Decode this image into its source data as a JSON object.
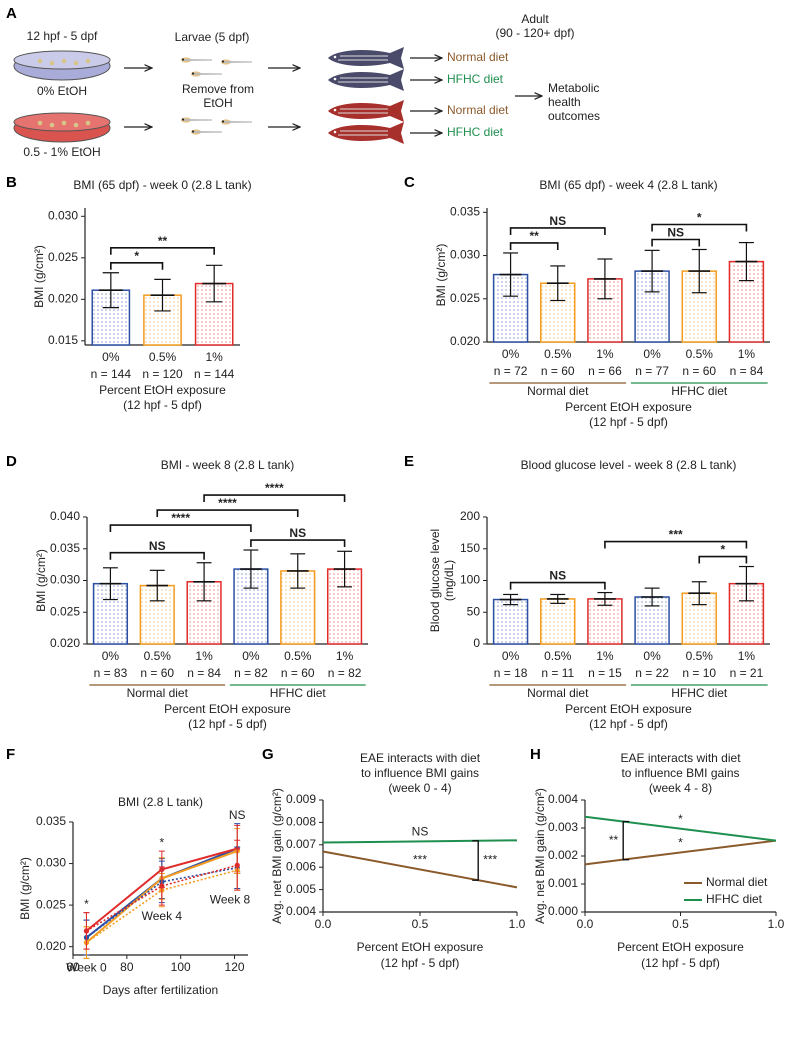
{
  "diagram": {
    "panel": "A",
    "plate_label": "12 hpf - 5 dpf",
    "dishes": [
      "0% EtOH",
      "0.5 - 1% EtOH"
    ],
    "larvae_label": "Larvae (5 dpf)",
    "remove_label": [
      "Remove from",
      "EtOH"
    ],
    "adult_label": [
      "Adult",
      "(90 - 120+ dpf)"
    ],
    "diets": [
      "Normal diet",
      "HFHC diet",
      "Normal diet",
      "HFHC diet"
    ],
    "outcome": [
      "Metabolic",
      "health",
      "outcomes"
    ]
  },
  "chart_data": [
    {
      "panel": "B",
      "type": "bar",
      "title": "BMI (65 dpf) - week 0 (2.8 L tank)",
      "ylabel": "BMI (g/cm²)",
      "xlabel": "Percent EtOH exposure",
      "xsublabel": "(12 hpf - 5 dpf)",
      "categories": [
        "0%",
        "0.5%",
        "1%"
      ],
      "n_labels": [
        "n = 144",
        "n = 120",
        "n = 144"
      ],
      "colors": [
        "#2d4fa3",
        "#f39c1f",
        "#e02b2b"
      ],
      "values": [
        0.0211,
        0.0205,
        0.0219
      ],
      "errors": [
        0.0021,
        0.0019,
        0.0022
      ],
      "ylim": [
        0.0145,
        0.031
      ],
      "yticks": [
        0.015,
        {
          "value": 0.02,
          "label": "0.020"
        },
        0.025,
        {
          "value": 0.03,
          "label": "0.030"
        }
      ],
      "annotations": [
        {
          "from": 0,
          "to": 1,
          "label": "*"
        },
        {
          "from": 0,
          "to": 2,
          "label": "**"
        }
      ]
    },
    {
      "panel": "C",
      "type": "bar",
      "title": "BMI (65 dpf) - week 4 (2.8 L tank)",
      "ylabel": "BMI (g/cm²)",
      "xlabel": "Percent EtOH exposure",
      "xsublabel": "(12 hpf - 5 dpf)",
      "categories": [
        "0%",
        "0.5%",
        "1%",
        "0%",
        "0.5%",
        "1%"
      ],
      "n_labels": [
        "n = 72",
        "n = 60",
        "n = 66",
        "n = 77",
        "n = 60",
        "n = 84"
      ],
      "colors": [
        "#2d4fa3",
        "#f39c1f",
        "#e02b2b",
        "#2d4fa3",
        "#f39c1f",
        "#e02b2b"
      ],
      "values": [
        0.0278,
        0.0268,
        0.0273,
        0.0282,
        0.0282,
        0.0293
      ],
      "errors": [
        0.0025,
        0.002,
        0.0023,
        0.0024,
        0.0025,
        0.0022
      ],
      "ylim": [
        0.02,
        0.0355
      ],
      "yticks": [
        {
          "value": 0.02,
          "label": "0.020"
        },
        0.025,
        {
          "value": 0.03,
          "label": "0.030"
        },
        0.035
      ],
      "groups": [
        {
          "label": "Normal diet",
          "color": "#8b5a2b",
          "from": 0,
          "to": 2
        },
        {
          "label": "HFHC diet",
          "color": "#1f8f4e",
          "from": 3,
          "to": 5
        }
      ],
      "annotations": [
        {
          "from": 0,
          "to": 1,
          "label": "**"
        },
        {
          "from": 0,
          "to": 2,
          "label": "NS"
        },
        {
          "from": 3,
          "to": 4,
          "label": "NS"
        },
        {
          "from": 3,
          "to": 5,
          "label": "*"
        }
      ]
    },
    {
      "panel": "D",
      "type": "bar",
      "title": "BMI  - week 8 (2.8 L tank)",
      "ylabel": "BMI (g/cm²)",
      "xlabel": "Percent EtOH exposure",
      "xsublabel": "(12 hpf - 5 dpf)",
      "categories": [
        "0%",
        "0.5%",
        "1%",
        "0%",
        "0.5%",
        "1%"
      ],
      "n_labels": [
        "n = 83",
        "n = 60",
        "n = 84",
        "n = 82",
        "n = 60",
        "n = 82"
      ],
      "colors": [
        "#2d4fa3",
        "#f39c1f",
        "#e02b2b",
        "#2d4fa3",
        "#f39c1f",
        "#e02b2b"
      ],
      "values": [
        0.0295,
        0.0292,
        0.0298,
        0.0318,
        0.0315,
        0.0318
      ],
      "errors": [
        0.0025,
        0.0024,
        0.003,
        0.003,
        0.0027,
        0.0028
      ],
      "ylim": [
        0.02,
        0.04
      ],
      "yticks": [
        {
          "value": 0.02,
          "label": "0.020"
        },
        0.025,
        {
          "value": 0.03,
          "label": "0.030"
        },
        0.035,
        {
          "value": 0.04,
          "label": "0.040"
        }
      ],
      "groups": [
        {
          "label": "Normal diet",
          "color": "#8b5a2b",
          "from": 0,
          "to": 2
        },
        {
          "label": "HFHC diet",
          "color": "#1f8f4e",
          "from": 3,
          "to": 5
        }
      ],
      "annotations": [
        {
          "from": 0,
          "to": 2,
          "label": "NS"
        },
        {
          "from": 3,
          "to": 5,
          "label": "NS"
        },
        {
          "from": 0,
          "to": 3,
          "label": "****"
        },
        {
          "from": 1,
          "to": 4,
          "label": "****"
        },
        {
          "from": 2,
          "to": 5,
          "label": "****"
        }
      ]
    },
    {
      "panel": "E",
      "type": "bar",
      "title": "Blood glucose level  - week 8 (2.8 L tank)",
      "ylabel": [
        "Blood  glucose level",
        "(mg/dL)"
      ],
      "xlabel": "Percent EtOH exposure",
      "xsublabel": "(12 hpf - 5 dpf)",
      "categories": [
        "0%",
        "0.5%",
        "1%",
        "0%",
        "0.5%",
        "1%"
      ],
      "n_labels": [
        "n = 18",
        "n = 11",
        "n = 15",
        "n = 22",
        "n = 10",
        "n = 21"
      ],
      "colors": [
        "#2d4fa3",
        "#f39c1f",
        "#e02b2b",
        "#2d4fa3",
        "#f39c1f",
        "#e02b2b"
      ],
      "values": [
        70,
        71,
        71,
        74,
        80,
        95
      ],
      "errors": [
        8,
        7,
        10,
        14,
        18,
        27
      ],
      "ylim": [
        0,
        200
      ],
      "yticks": [
        0,
        50,
        100,
        150,
        200
      ],
      "groups": [
        {
          "label": "Normal diet",
          "color": "#8b5a2b",
          "from": 0,
          "to": 2
        },
        {
          "label": "HFHC diet",
          "color": "#1f8f4e",
          "from": 3,
          "to": 5
        }
      ],
      "annotations": [
        {
          "from": 0,
          "to": 2,
          "label": "NS"
        },
        {
          "from": 4,
          "to": 5,
          "label": "*"
        },
        {
          "from": 2,
          "to": 5,
          "label": "***"
        }
      ]
    },
    {
      "panel": "F",
      "type": "line",
      "title": "BMI (2.8 L tank)",
      "ylabel": "BMI (g/cm²)",
      "xlabel": "Days after fertilization",
      "x": [
        65,
        93,
        121
      ],
      "xlim": [
        60,
        125
      ],
      "xticks": [
        60,
        80,
        100,
        120
      ],
      "ylim": [
        0.019,
        0.035
      ],
      "yticks": [
        {
          "value": 0.02,
          "label": "0.020"
        },
        0.025,
        {
          "value": 0.03,
          "label": "0.030"
        },
        0.035
      ],
      "markers": true,
      "series": [
        {
          "color": "#2d4fa3",
          "dash": false,
          "values": [
            0.0211,
            0.0282,
            0.0318
          ],
          "errors": [
            0.0021,
            0.0024,
            0.003
          ]
        },
        {
          "color": "#f39c1f",
          "dash": false,
          "values": [
            0.0205,
            0.0282,
            0.0315
          ],
          "errors": [
            0.0019,
            0.0025,
            0.0027
          ]
        },
        {
          "color": "#e02b2b",
          "dash": false,
          "values": [
            0.0219,
            0.0293,
            0.0318
          ],
          "errors": [
            0.0022,
            0.0022,
            0.0028
          ]
        },
        {
          "color": "#2d4fa3",
          "dash": true,
          "values": [
            0.0211,
            0.0278,
            0.0295
          ],
          "errors": [
            0.0021,
            0.0025,
            0.0025
          ]
        },
        {
          "color": "#f39c1f",
          "dash": true,
          "values": [
            0.0205,
            0.0268,
            0.0292
          ],
          "errors": [
            0.0019,
            0.002,
            0.0024
          ]
        },
        {
          "color": "#e02b2b",
          "dash": true,
          "values": [
            0.0219,
            0.0273,
            0.0298
          ],
          "errors": [
            0.0022,
            0.0023,
            0.003
          ]
        }
      ],
      "x_annotations": [
        {
          "x": 65,
          "label": "*",
          "color": "#e02b2b"
        },
        {
          "x": 93,
          "label": "*",
          "color": "#e02b2b"
        },
        {
          "x": 121,
          "label": "NS",
          "color": "#e02b2b"
        }
      ],
      "point_labels": [
        {
          "x": 65,
          "label": "Week 0"
        },
        {
          "x": 93,
          "label": "Week 4"
        },
        {
          "x": 121,
          "label": "Week 8"
        }
      ]
    },
    {
      "panel": "G",
      "type": "line",
      "title": [
        "EAE interacts with diet",
        "to influence BMI gains",
        "(week 0 - 4)"
      ],
      "ylabel": "Avg. net BMI gain (g/cm²)",
      "xlabel": "Percent EtOH exposure",
      "xsublabel": "(12 hpf - 5 dpf)",
      "x": [
        0,
        1
      ],
      "xlim": [
        0,
        1
      ],
      "xticks": [
        {
          "value": 0,
          "label": "0.0"
        },
        0.5,
        {
          "value": 1,
          "label": "1.0"
        }
      ],
      "ylim": [
        0.004,
        0.009
      ],
      "yticks": [
        0.004,
        0.005,
        0.006,
        0.007,
        0.008,
        0.009
      ],
      "series": [
        {
          "color": "#8b5a2b",
          "values": [
            0.0067,
            0.0051
          ]
        },
        {
          "color": "#1f8f4e",
          "values": [
            0.0071,
            0.0072
          ]
        }
      ],
      "line_labels": [
        {
          "series": 1,
          "x": 0.5,
          "label": "NS"
        },
        {
          "series": 0,
          "x": 0.5,
          "label": "***"
        }
      ],
      "brackets": [
        {
          "x": 0.8,
          "between": [
            0,
            1
          ],
          "label": "***"
        }
      ]
    },
    {
      "panel": "H",
      "type": "line",
      "title": [
        "EAE interacts with diet",
        "to influence BMI gains",
        "(week 4 - 8)"
      ],
      "ylabel": "Avg. net BMI gain (g/cm²)",
      "xlabel": "Percent EtOH exposure",
      "xsublabel": "(12 hpf - 5 dpf)",
      "x": [
        0,
        1
      ],
      "xlim": [
        0,
        1
      ],
      "xticks": [
        {
          "value": 0,
          "label": "0.0"
        },
        0.5,
        {
          "value": 1,
          "label": "1.0"
        }
      ],
      "ylim": [
        0,
        0.004
      ],
      "yticks": [
        {
          "value": 0,
          "label": "0.000"
        },
        0.001,
        0.002,
        0.003,
        0.004
      ],
      "series": [
        {
          "name": "Normal diet",
          "color": "#8b5a2b",
          "values": [
            0.0017,
            0.00255
          ]
        },
        {
          "name": "HFHC diet",
          "color": "#1f8f4e",
          "values": [
            0.0034,
            0.00255
          ]
        }
      ],
      "line_labels": [
        {
          "series": 1,
          "x": 0.5,
          "label": "*"
        },
        {
          "series": 0,
          "x": 0.5,
          "label": "*"
        }
      ],
      "brackets": [
        {
          "x": 0.2,
          "between": [
            0,
            1
          ],
          "label": "**"
        }
      ],
      "legend": "lower right"
    }
  ]
}
